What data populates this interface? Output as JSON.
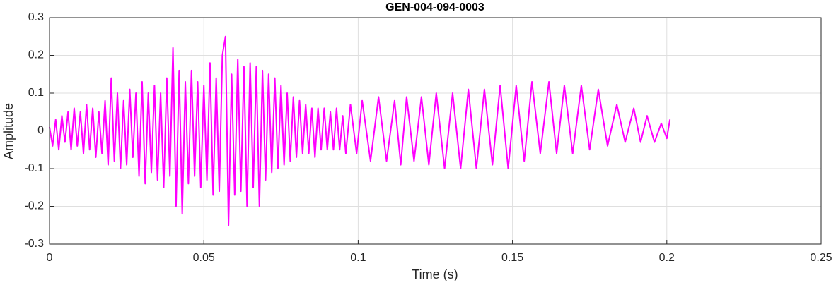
{
  "chart_data": {
    "type": "line",
    "title": "GEN-004-094-0003",
    "x_label": "Time (s)",
    "y_label": "Amplitude",
    "xlim": [
      0,
      0.25
    ],
    "xticks": [
      0,
      0.05,
      0.1,
      0.15,
      0.2,
      0.25
    ],
    "ylim": [
      -0.3,
      0.3
    ],
    "yticks": [
      -0.3,
      -0.2,
      -0.1,
      0,
      0.1,
      0.2,
      0.3
    ],
    "grid": true,
    "series": [
      {
        "color": "#ff00ff",
        "x": [
          0,
          0.001,
          0.002,
          0.003,
          0.004,
          0.005,
          0.006,
          0.007,
          0.008,
          0.009,
          0.01,
          0.011,
          0.012,
          0.013,
          0.014,
          0.015,
          0.016,
          0.017,
          0.018,
          0.019,
          0.02,
          0.021,
          0.022,
          0.023,
          0.024,
          0.025,
          0.026,
          0.027,
          0.028,
          0.029,
          0.03,
          0.031,
          0.032,
          0.033,
          0.034,
          0.035,
          0.036,
          0.037,
          0.038,
          0.039,
          0.04,
          0.041,
          0.042,
          0.043,
          0.044,
          0.045,
          0.046,
          0.047,
          0.048,
          0.049,
          0.05,
          0.051,
          0.052,
          0.053,
          0.054,
          0.055,
          0.056,
          0.057,
          0.058,
          0.059,
          0.06,
          0.061,
          0.062,
          0.063,
          0.064,
          0.065,
          0.066,
          0.067,
          0.068,
          0.069,
          0.07,
          0.071,
          0.072,
          0.073,
          0.074,
          0.075,
          0.076,
          0.077,
          0.078,
          0.079,
          0.08,
          0.081,
          0.082,
          0.083,
          0.084,
          0.085,
          0.086,
          0.087,
          0.088,
          0.089,
          0.09,
          0.091,
          0.092,
          0.093,
          0.094,
          0.095,
          0.096,
          0.0975,
          0.0995,
          0.1013,
          0.104,
          0.1066,
          0.1092,
          0.1118,
          0.1138,
          0.1157,
          0.1181,
          0.1205,
          0.1229,
          0.1253,
          0.128,
          0.1306,
          0.1332,
          0.1357,
          0.1383,
          0.1409,
          0.1435,
          0.146,
          0.1486,
          0.1512,
          0.1538,
          0.1563,
          0.159,
          0.1618,
          0.1643,
          0.1668,
          0.1695,
          0.1723,
          0.175,
          0.1778,
          0.1808,
          0.1838,
          0.1865,
          0.1893,
          0.1915,
          0.1936,
          0.196,
          0.1982,
          0.2,
          0.201
        ],
        "values": [
          0.01,
          -0.04,
          0.03,
          -0.05,
          0.04,
          -0.03,
          0.05,
          -0.05,
          0.06,
          -0.04,
          0.05,
          -0.06,
          0.07,
          -0.05,
          0.06,
          -0.07,
          0.05,
          -0.06,
          0.08,
          -0.09,
          0.14,
          -0.08,
          0.1,
          -0.1,
          0.08,
          -0.09,
          0.11,
          -0.07,
          0.1,
          -0.12,
          0.13,
          -0.14,
          0.1,
          -0.11,
          0.12,
          -0.13,
          0.1,
          -0.15,
          0.14,
          -0.12,
          0.22,
          -0.2,
          0.16,
          -0.22,
          0.13,
          -0.14,
          0.16,
          -0.12,
          0.13,
          -0.15,
          0.12,
          -0.13,
          0.18,
          -0.17,
          0.14,
          -0.16,
          0.2,
          0.25,
          -0.25,
          0.15,
          -0.17,
          0.19,
          -0.16,
          0.17,
          -0.2,
          0.18,
          -0.15,
          0.17,
          -0.2,
          0.16,
          -0.13,
          0.15,
          -0.11,
          0.14,
          -0.1,
          0.12,
          -0.09,
          0.1,
          -0.08,
          0.09,
          -0.07,
          0.08,
          -0.06,
          0.07,
          -0.06,
          0.06,
          -0.07,
          0.06,
          -0.05,
          0.06,
          -0.05,
          0.05,
          -0.05,
          0.06,
          -0.05,
          0.04,
          -0.06,
          0.07,
          -0.06,
          0.08,
          -0.08,
          0.09,
          -0.08,
          0.08,
          -0.09,
          0.09,
          -0.08,
          0.09,
          -0.09,
          0.1,
          -0.1,
          0.1,
          -0.1,
          0.11,
          -0.1,
          0.11,
          -0.09,
          0.12,
          -0.1,
          0.12,
          -0.08,
          0.13,
          -0.06,
          0.13,
          -0.06,
          0.12,
          -0.06,
          0.12,
          -0.05,
          0.11,
          -0.04,
          0.07,
          -0.03,
          0.06,
          -0.03,
          0.04,
          -0.03,
          0.02,
          -0.02,
          0.03
        ]
      }
    ]
  }
}
